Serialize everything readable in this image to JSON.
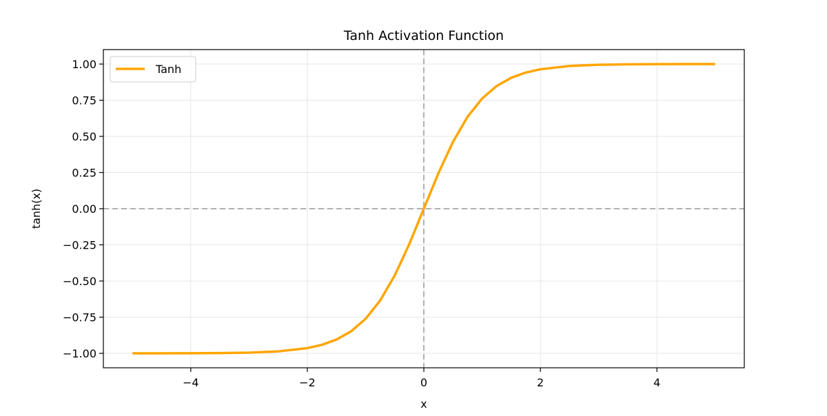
{
  "chart_data": {
    "type": "line",
    "title": "Tanh Activation Function",
    "xlabel": "x",
    "ylabel": "tanh(x)",
    "xlim": [
      -5.5,
      5.5
    ],
    "ylim": [
      -1.1,
      1.1
    ],
    "xticks": [
      -4,
      -2,
      0,
      2,
      4
    ],
    "xtick_labels": [
      "−4",
      "−2",
      "0",
      "2",
      "4"
    ],
    "yticks": [
      -1.0,
      -0.75,
      -0.5,
      -0.25,
      0.0,
      0.25,
      0.5,
      0.75,
      1.0
    ],
    "ytick_labels": [
      "−1.00",
      "−0.75",
      "−0.50",
      "−0.25",
      "0.00",
      "0.25",
      "0.50",
      "0.75",
      "1.00"
    ],
    "grid": true,
    "legend_position": "top-left",
    "reference_lines": [
      {
        "orientation": "horizontal",
        "value": 0,
        "style": "dashed",
        "color": "#b0b0b0"
      },
      {
        "orientation": "vertical",
        "value": 0,
        "style": "dashed",
        "color": "#b0b0b0"
      }
    ],
    "series": [
      {
        "name": "Tanh",
        "color": "#ffa500",
        "x": [
          -5.0,
          -4.5,
          -4.0,
          -3.5,
          -3.0,
          -2.5,
          -2.0,
          -1.75,
          -1.5,
          -1.25,
          -1.0,
          -0.75,
          -0.5,
          -0.25,
          0.0,
          0.25,
          0.5,
          0.75,
          1.0,
          1.25,
          1.5,
          1.75,
          2.0,
          2.5,
          3.0,
          3.5,
          4.0,
          4.5,
          5.0
        ],
        "y": [
          -0.9999,
          -0.9998,
          -0.9993,
          -0.9982,
          -0.9951,
          -0.9866,
          -0.964,
          -0.9414,
          -0.9051,
          -0.8483,
          -0.7616,
          -0.6351,
          -0.4621,
          -0.2449,
          0.0,
          0.2449,
          0.4621,
          0.6351,
          0.7616,
          0.8483,
          0.9051,
          0.9414,
          0.964,
          0.9866,
          0.9951,
          0.9982,
          0.9993,
          0.9998,
          0.9999
        ]
      }
    ]
  }
}
